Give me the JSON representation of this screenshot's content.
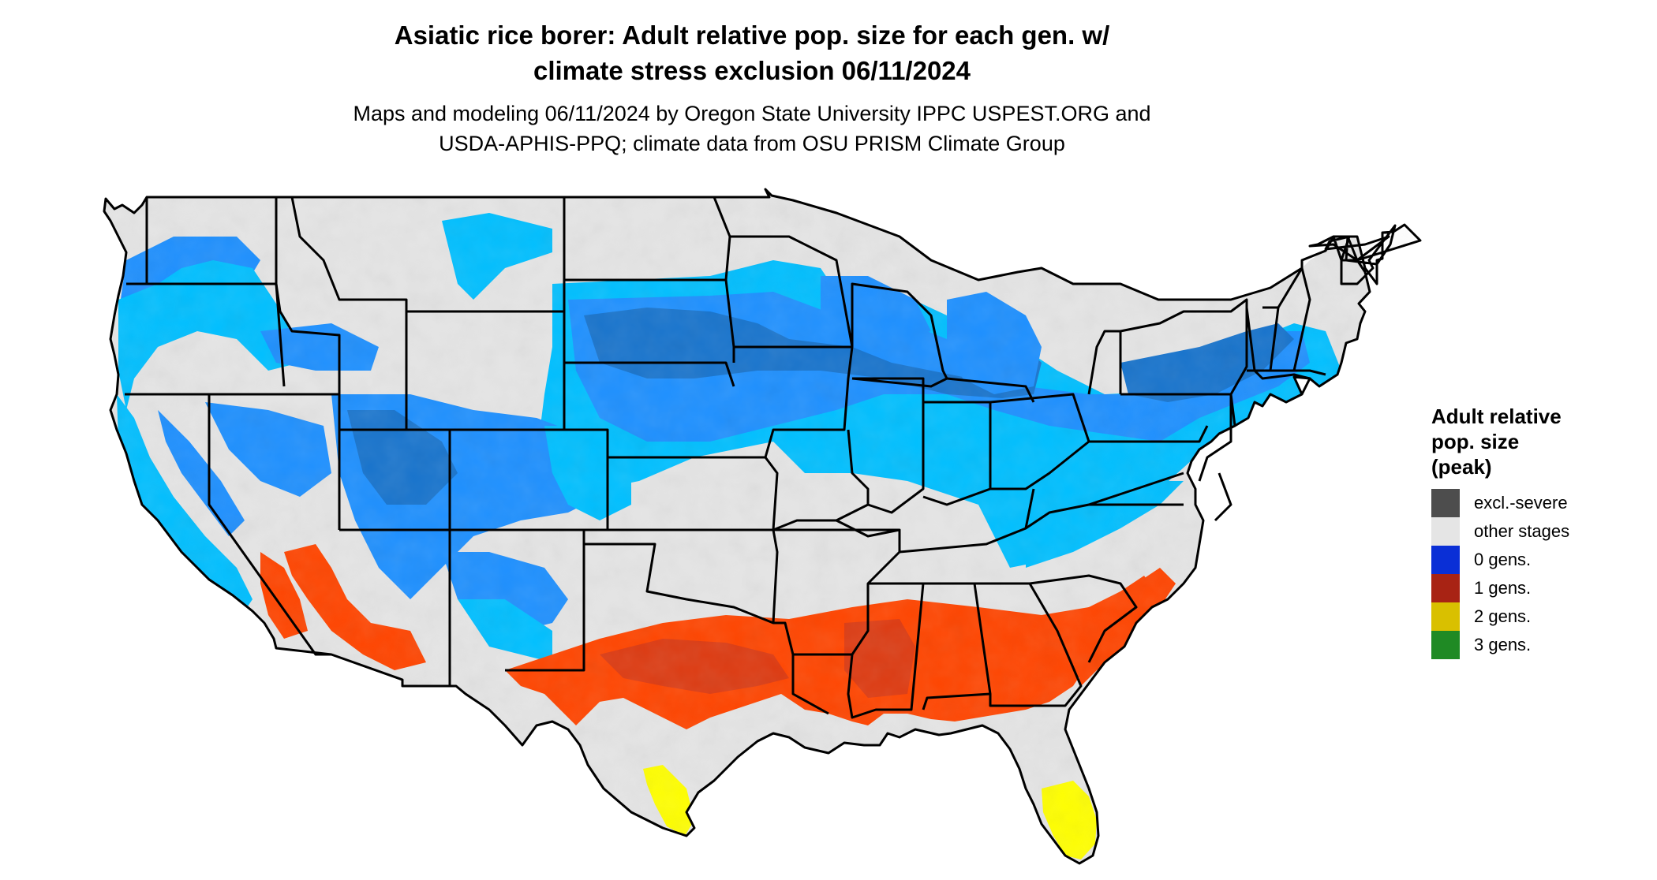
{
  "title": {
    "line1": "Asiatic rice borer: Adult relative pop. size for each gen. w/",
    "line2": "climate stress exclusion 06/11/2024"
  },
  "subtitle": {
    "line1": "Maps and modeling 06/11/2024 by Oregon State University IPPC USPEST.ORG and",
    "line2": "USDA-APHIS-PPQ; climate data from OSU PRISM Climate Group"
  },
  "legend": {
    "title_lines": [
      "Adult relative",
      "pop. size",
      "(peak)"
    ],
    "items": [
      {
        "label": "excl.-severe",
        "color": "#4d4d4d"
      },
      {
        "label": "other stages",
        "color": "#e5e5e5"
      },
      {
        "label": "0 gens.",
        "color": "#0a2fd6"
      },
      {
        "label": "1 gens.",
        "color": "#a82314"
      },
      {
        "label": "2 gens.",
        "color": "#d9c000"
      },
      {
        "label": "3 gens.",
        "color": "#1f8a24"
      }
    ]
  },
  "map_colors": {
    "land_background": "#e5e5e5",
    "light_blue": "#00bfff",
    "mid_blue": "#1e90ff",
    "dark_blue": "#1874cd",
    "orange_red": "#ff4500",
    "dark_red": "#dd3b12",
    "yellow": "#ffff00",
    "yellow_dark": "#e6d800",
    "state_border": "#000000"
  }
}
